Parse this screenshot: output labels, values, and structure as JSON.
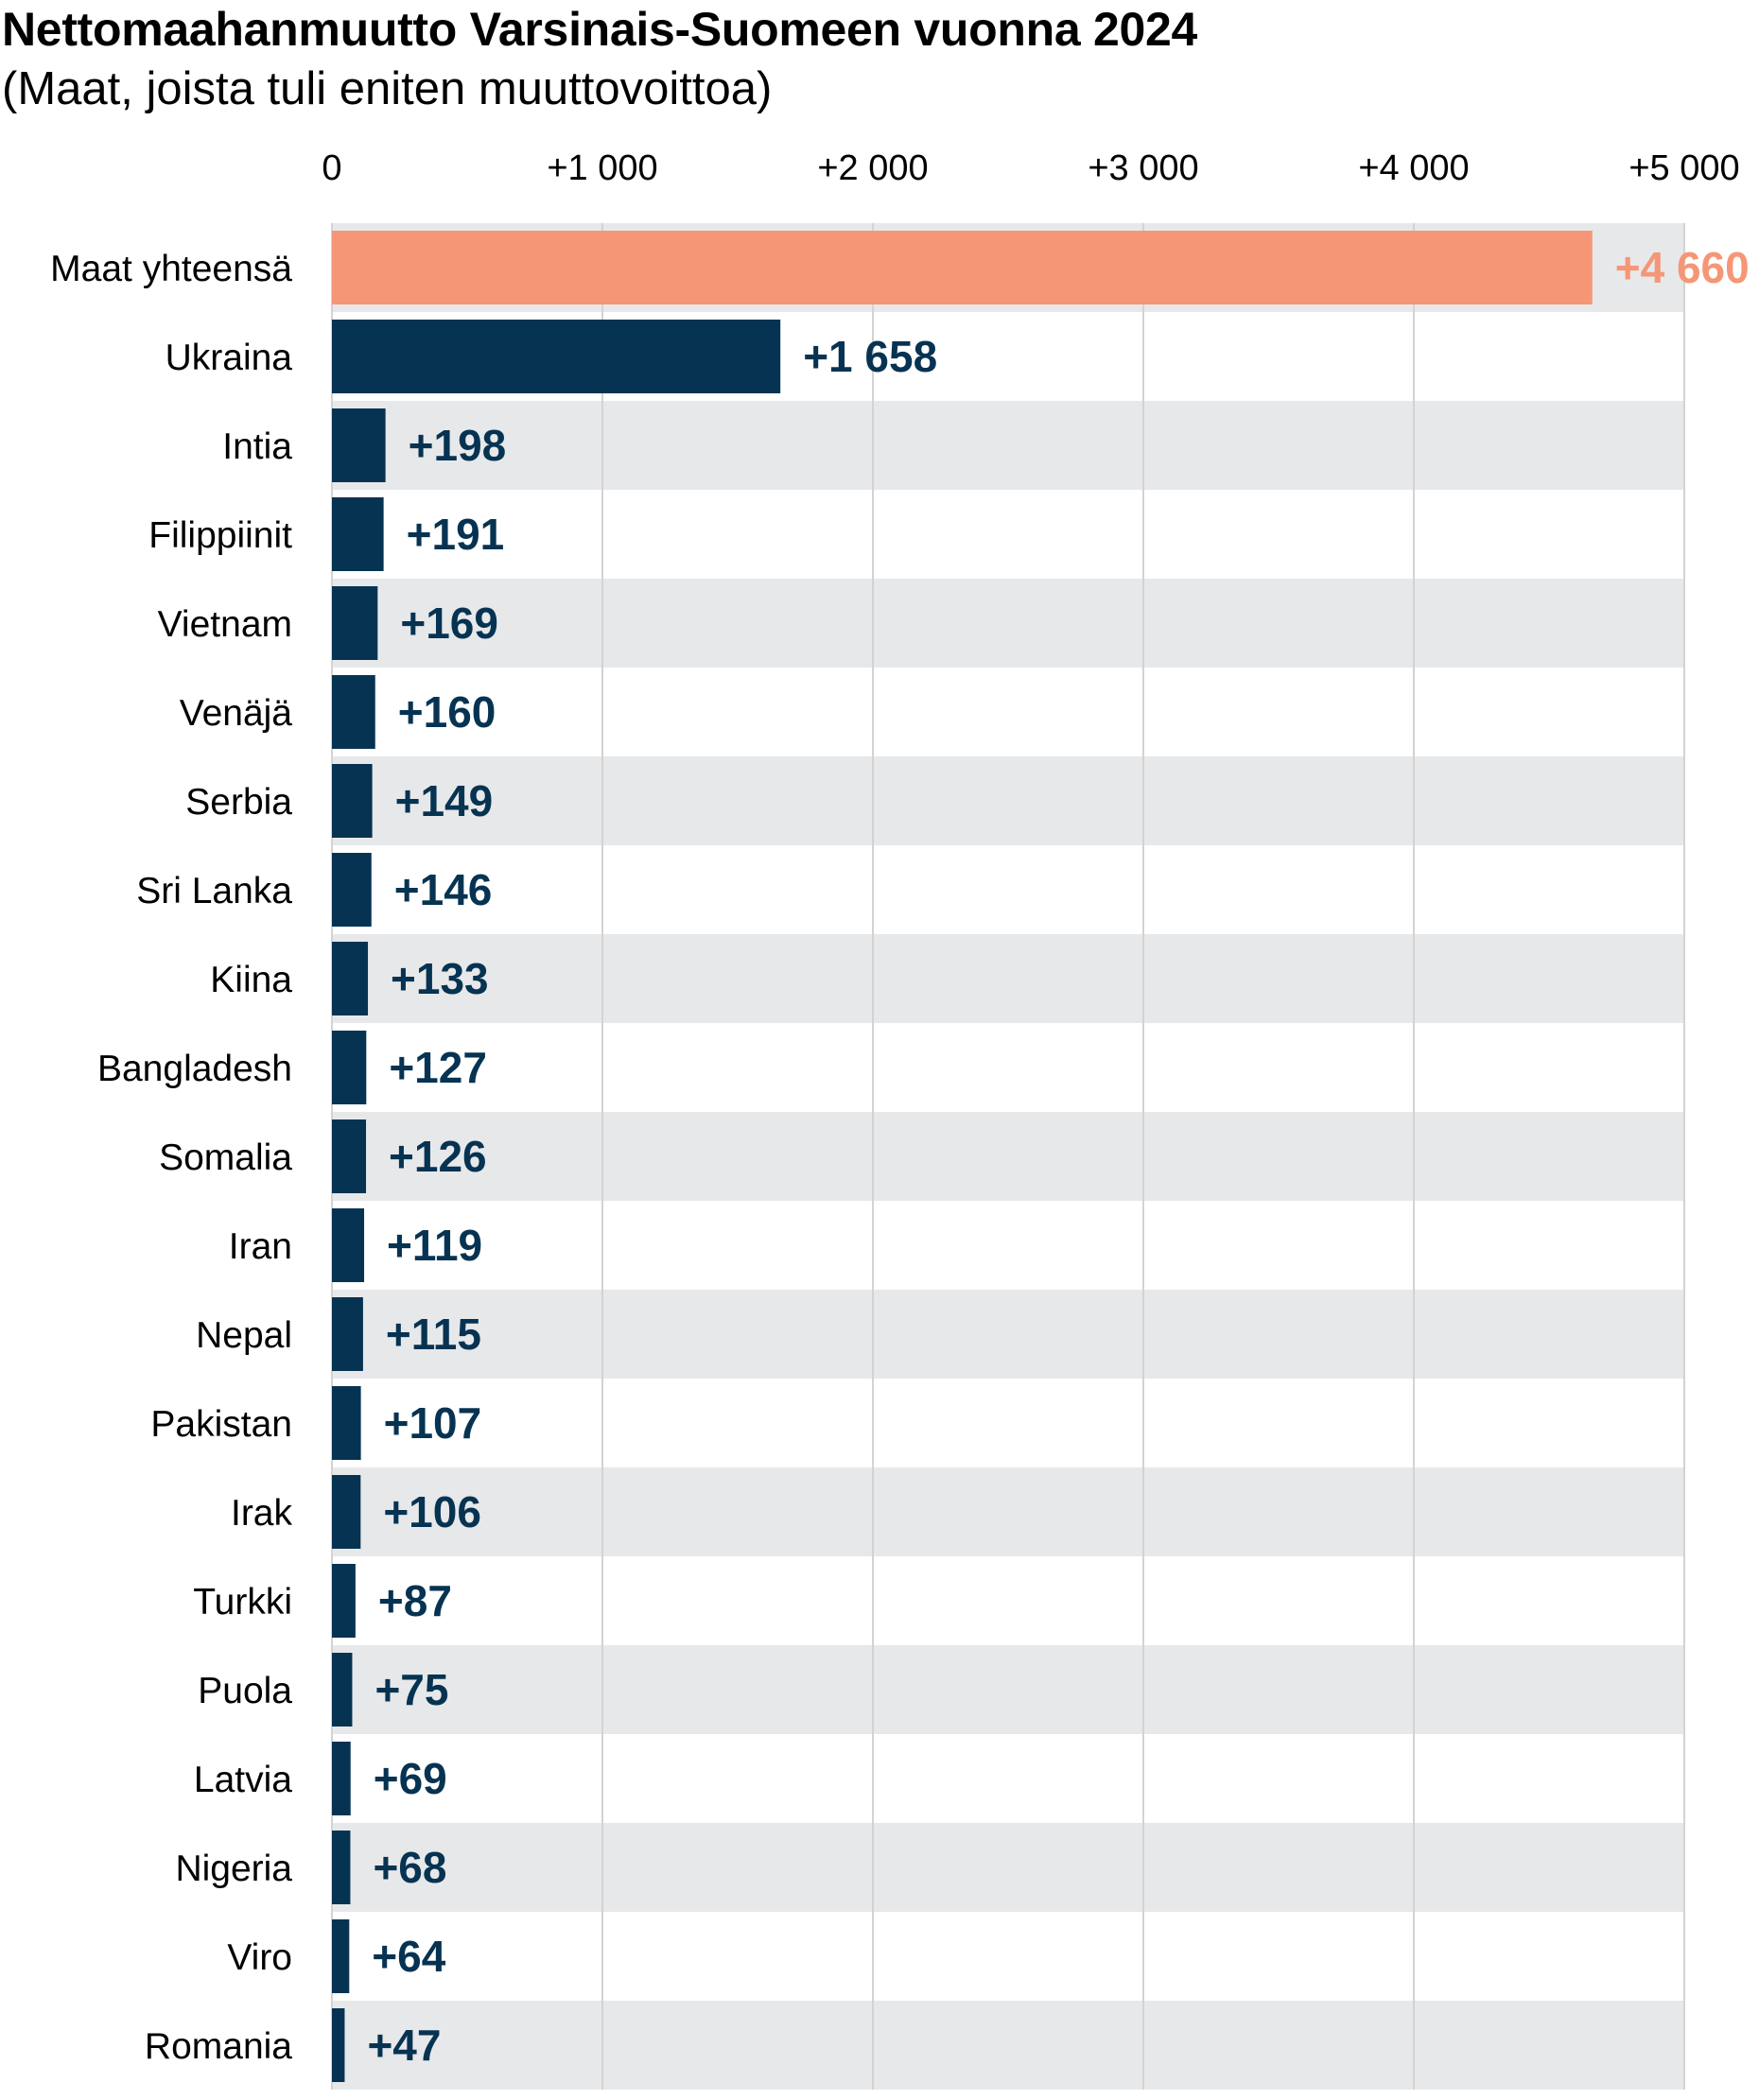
{
  "chart_data": {
    "type": "bar",
    "orientation": "horizontal",
    "title": "Nettomaahanmuutto Varsinais-Suomeen vuonna 2024",
    "subtitle": "(Maat, joista tuli eniten muuttovoittoa)",
    "xlim": [
      0,
      5000
    ],
    "ticks": [
      0,
      1000,
      2000,
      3000,
      4000,
      5000
    ],
    "tick_labels": [
      "0",
      "+1 000",
      "+2 000",
      "+3 000",
      "+4 000",
      "+5 000"
    ],
    "tick_position": "top",
    "grid": true,
    "categories": [
      "Maat yhteensä",
      "Ukraina",
      "Intia",
      "Filippiinit",
      "Vietnam",
      "Venäjä",
      "Serbia",
      "Sri Lanka",
      "Kiina",
      "Bangladesh",
      "Somalia",
      "Iran",
      "Nepal",
      "Pakistan",
      "Irak",
      "Turkki",
      "Puola",
      "Latvia",
      "Nigeria",
      "Viro",
      "Romania"
    ],
    "values": [
      4660,
      1658,
      198,
      191,
      169,
      160,
      149,
      146,
      133,
      127,
      126,
      119,
      115,
      107,
      106,
      87,
      75,
      69,
      68,
      64,
      47
    ],
    "value_labels": [
      "+4 660",
      "+1 658",
      "+198",
      "+191",
      "+169",
      "+160",
      "+149",
      "+146",
      "+133",
      "+127",
      "+126",
      "+119",
      "+115",
      "+107",
      "+106",
      "+87",
      "+75",
      "+69",
      "+68",
      "+64",
      "+47"
    ],
    "highlight_index": 0,
    "colors": {
      "highlight": "#f59676",
      "bar": "#073352",
      "band": "#e7e8ea",
      "grid": "#d3d3d3"
    }
  }
}
